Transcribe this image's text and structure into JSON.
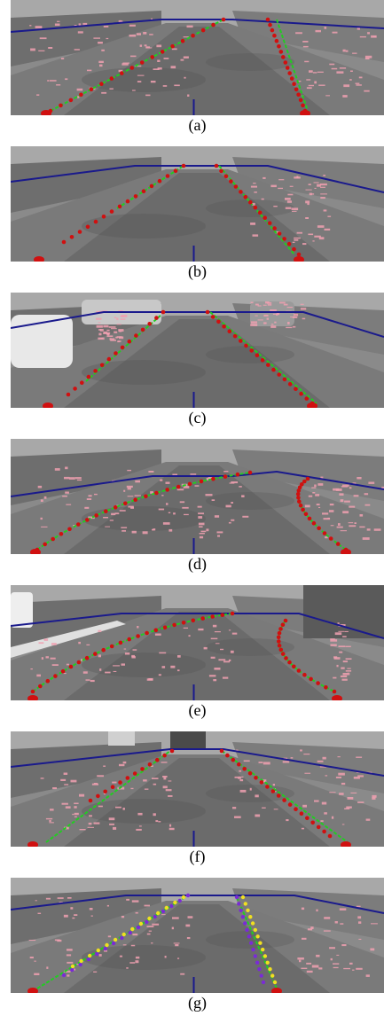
{
  "panels": [
    {
      "caption": "(a)",
      "variant": "a"
    },
    {
      "caption": "(b)",
      "variant": "b"
    },
    {
      "caption": "(c)",
      "variant": "c"
    },
    {
      "caption": "(d)",
      "variant": "d"
    },
    {
      "caption": "(e)",
      "variant": "e"
    },
    {
      "caption": "(f)",
      "variant": "f"
    },
    {
      "caption": "(g)",
      "variant": "g"
    }
  ],
  "colors": {
    "road_dark": "#5e5e5e",
    "road_mid": "#7a7a7a",
    "roi_line": "#1a1a8c",
    "detected_point": "#d01010",
    "fit_curve": "#22cc22",
    "edge_pixels": "#f0a0b0",
    "alt_point_purple": "#7a2bd6",
    "alt_point_yellow": "#f0e020",
    "center_tick": "#1a1a8c"
  }
}
